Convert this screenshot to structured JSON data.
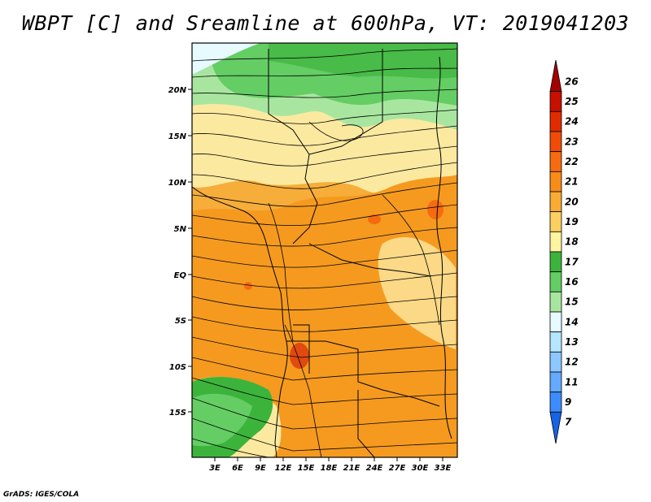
{
  "title": "WBPT [C] and Sreamline at 600hPa, VT: 2019041203",
  "credit": "GrADS: IGES/COLA",
  "map": {
    "lat_labels": [
      "20N",
      "15N",
      "10N",
      "5N",
      "EQ",
      "5S",
      "10S",
      "15S"
    ],
    "lon_labels": [
      "3E",
      "6E",
      "9E",
      "12E",
      "15E",
      "18E",
      "21E",
      "24E",
      "27E",
      "30E",
      "33E"
    ]
  },
  "colorbar": {
    "levels": [
      "26",
      "25",
      "24",
      "23",
      "22",
      "21",
      "20",
      "19",
      "18",
      "17",
      "16",
      "15",
      "14",
      "13",
      "12",
      "11",
      "9",
      "7"
    ],
    "colors": [
      "#a50000",
      "#c81000",
      "#e02c00",
      "#f04c08",
      "#f76b10",
      "#f88c18",
      "#f9ac34",
      "#fbd060",
      "#fff4a0",
      "#3cb43c",
      "#64cd64",
      "#a8e6a0",
      "#e6faff",
      "#b4e6ff",
      "#8cc8ff",
      "#64aaff",
      "#3c8cff",
      "#1464e6"
    ]
  },
  "field_colors": {
    "orange_dark": "#f59a1f",
    "orange": "#f6ad3a",
    "yellow": "#fce9a0",
    "green_light": "#a8e6a0",
    "green": "#64cd64",
    "green_dark": "#3cb43c",
    "red": "#e04a10"
  }
}
